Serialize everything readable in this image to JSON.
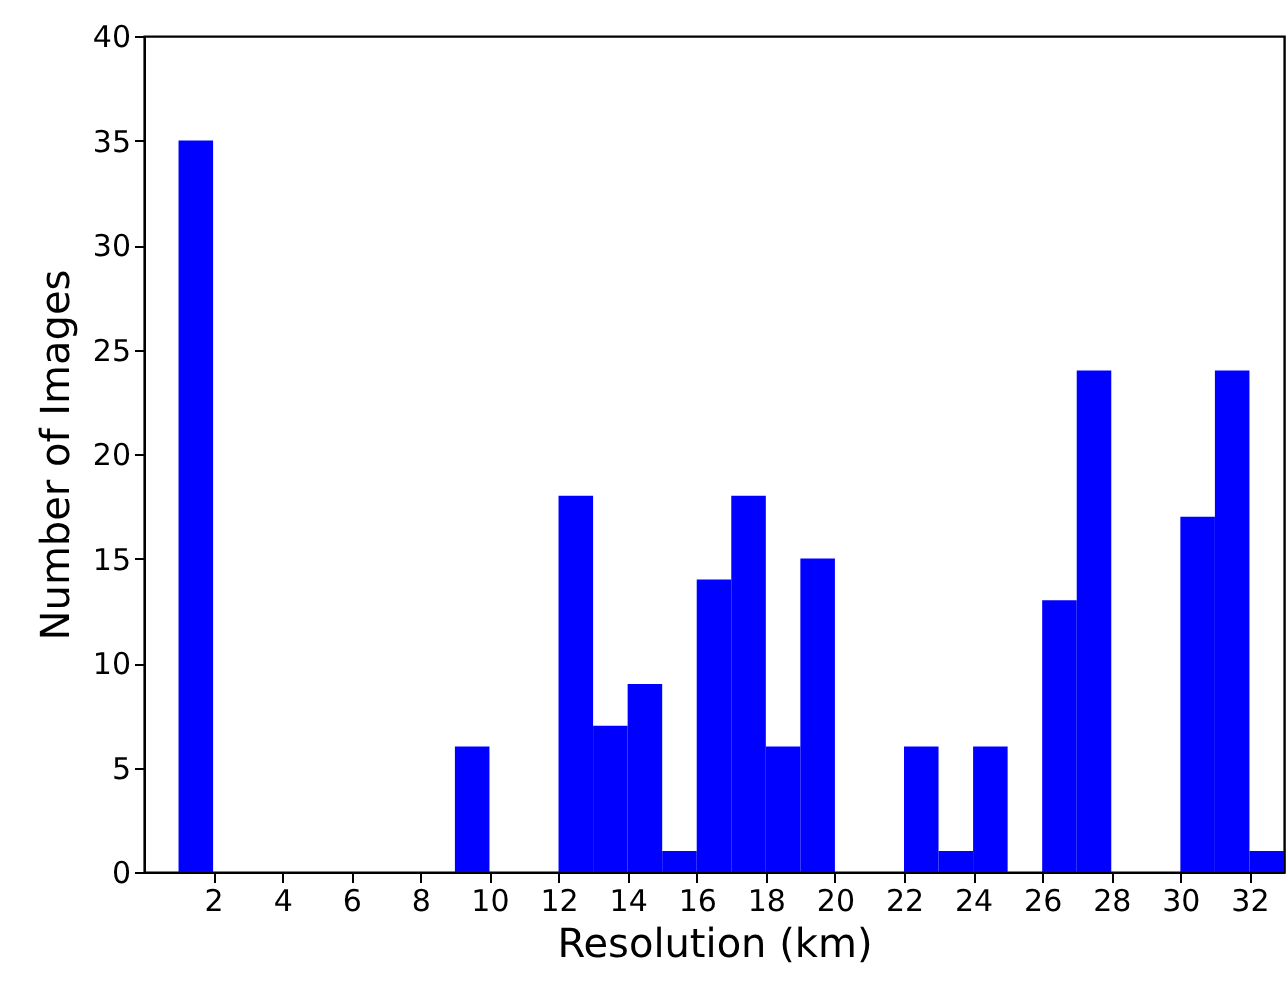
{
  "chart_data": {
    "type": "histogram",
    "xlabel": "Resolution (km)",
    "ylabel": "Number of Images",
    "color": "#0000ff",
    "bins": [
      1,
      2,
      3,
      4,
      5,
      6,
      7,
      8,
      9,
      10,
      11,
      12,
      13,
      14,
      15,
      16,
      17,
      18,
      19,
      20,
      21,
      22,
      23,
      24,
      25,
      26,
      27,
      28,
      29,
      30,
      31,
      32,
      33
    ],
    "values": [
      35,
      0,
      0,
      0,
      0,
      0,
      0,
      0,
      6,
      0,
      0,
      18,
      7,
      9,
      1,
      14,
      18,
      6,
      15,
      0,
      0,
      6,
      1,
      6,
      0,
      13,
      24,
      0,
      0,
      17,
      24,
      1
    ],
    "xlim": [
      0,
      33
    ],
    "xticks": [
      2,
      4,
      6,
      8,
      10,
      12,
      14,
      16,
      18,
      20,
      22,
      24,
      26,
      28,
      30,
      32
    ],
    "ylim": [
      0,
      40
    ],
    "yticks": [
      0,
      5,
      10,
      15,
      20,
      25,
      30,
      35,
      40
    ],
    "grid": false
  }
}
